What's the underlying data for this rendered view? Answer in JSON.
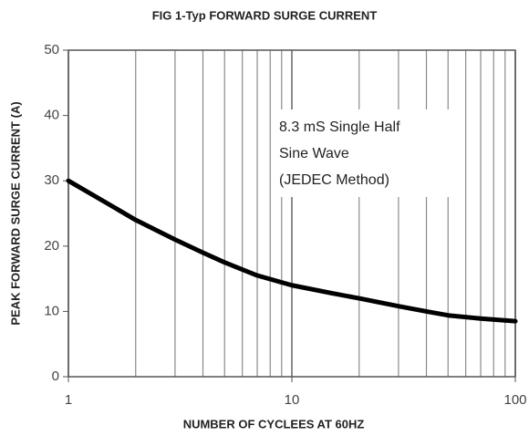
{
  "chart_data": {
    "type": "line",
    "title": "FIG 1-Typ FORWARD SURGE CURRENT",
    "xlabel": "NUMBER OF CYCLEES AT 60HZ",
    "ylabel": "PEAK FORWARD SURGE CURRENT (A)",
    "annotation": [
      "8.3 mS Single Half",
      "Sine Wave",
      "(JEDEC Method)"
    ],
    "x": [
      1,
      1.5,
      2,
      3,
      4,
      5,
      7,
      10,
      15,
      20,
      30,
      40,
      50,
      70,
      100
    ],
    "values": [
      30,
      26.5,
      24,
      21,
      19,
      17.5,
      15.5,
      14,
      12.8,
      12,
      10.8,
      10,
      9.4,
      8.9,
      8.5
    ],
    "color": "#000000",
    "xscale": "log",
    "xlim": [
      1,
      100
    ],
    "xticks": [
      1,
      10,
      100
    ],
    "xminorticks": [
      2,
      3,
      4,
      5,
      6,
      7,
      8,
      9,
      20,
      30,
      40,
      50,
      60,
      70,
      80,
      90
    ],
    "ylim": [
      0,
      50
    ],
    "yticks": [
      0,
      10,
      20,
      30,
      40,
      50
    ],
    "grid": "x"
  }
}
